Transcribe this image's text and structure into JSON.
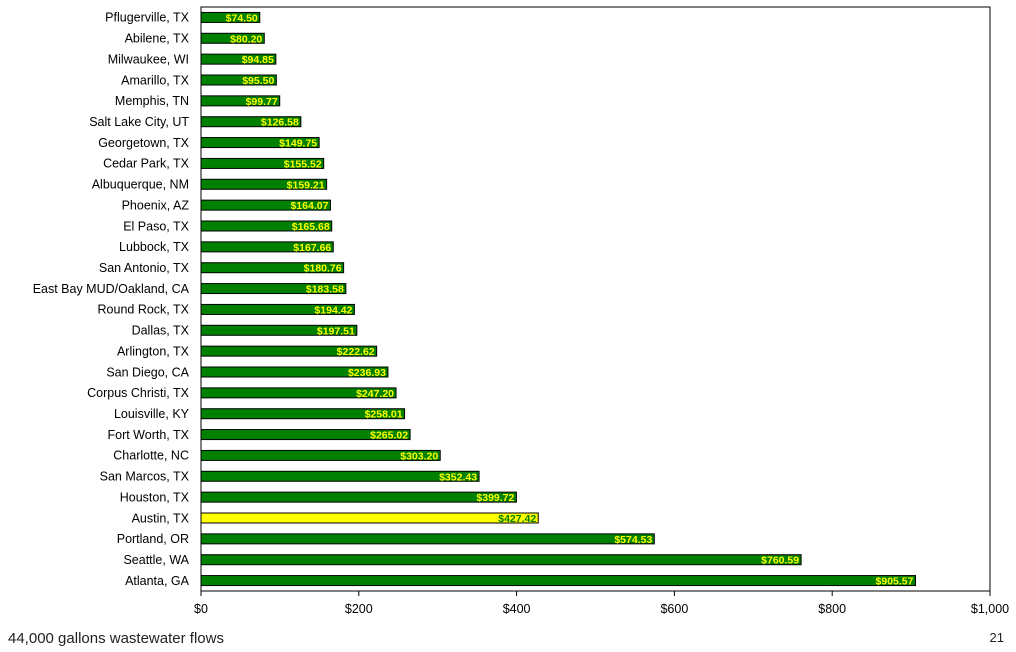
{
  "chart_data": {
    "type": "bar",
    "orientation": "horizontal",
    "categories": [
      "Pflugerville, TX",
      "Abilene, TX",
      "Milwaukee, WI",
      "Amarillo, TX",
      "Memphis, TN",
      "Salt Lake City, UT",
      "Georgetown, TX",
      "Cedar Park, TX",
      "Albuquerque, NM",
      "Phoenix, AZ",
      "El Paso, TX",
      "Lubbock, TX",
      "San Antonio, TX",
      "East Bay MUD/Oakland, CA",
      "Round Rock, TX",
      "Dallas, TX",
      "Arlington, TX",
      "San Diego, CA",
      "Corpus Christi, TX",
      "Louisville, KY",
      "Fort Worth, TX",
      "Charlotte, NC",
      "San Marcos, TX",
      "Houston, TX",
      "Austin, TX",
      "Portland, OR",
      "Seattle, WA",
      "Atlanta, GA"
    ],
    "values": [
      74.5,
      80.2,
      94.85,
      95.5,
      99.77,
      126.58,
      149.75,
      155.52,
      159.21,
      164.07,
      165.68,
      167.66,
      180.76,
      183.58,
      194.42,
      197.51,
      222.62,
      236.93,
      247.2,
      258.01,
      265.02,
      303.2,
      352.43,
      399.72,
      427.42,
      574.53,
      760.59,
      905.57
    ],
    "value_labels": [
      "$74.50",
      "$80.20",
      "$94.85",
      "$95.50",
      "$99.77",
      "$126.58",
      "$149.75",
      "$155.52",
      "$159.21",
      "$164.07",
      "$165.68",
      "$167.66",
      "$180.76",
      "$183.58",
      "$194.42",
      "$197.51",
      "$222.62",
      "$236.93",
      "$247.20",
      "$258.01",
      "$265.02",
      "$303.20",
      "$352.43",
      "$399.72",
      "$427.42",
      "$574.53",
      "$760.59",
      "$905.57"
    ],
    "highlight_category": "Austin, TX",
    "xlim": [
      0,
      1000
    ],
    "x_ticks": [
      0,
      200,
      400,
      600,
      800,
      1000
    ],
    "x_tick_labels": [
      "$0",
      "$200",
      "$400",
      "$600",
      "$800",
      "$1,000"
    ],
    "grid": false,
    "colors": {
      "bar": "#008000",
      "highlight_bar": "#ffff00",
      "label": "#ffff00",
      "highlight_label": "#008000",
      "border": "#000000"
    }
  },
  "footer": {
    "caption": "44,000 gallons wastewater flows",
    "page_number": "21"
  }
}
